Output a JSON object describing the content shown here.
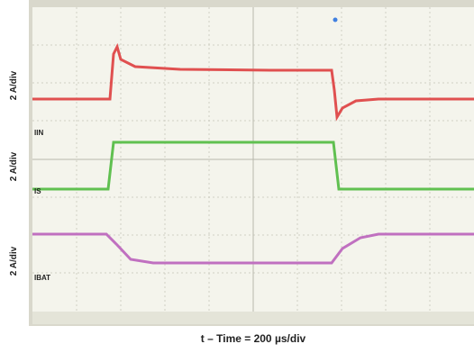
{
  "channels": [
    {
      "scale": "2 A/div",
      "label": "IIN"
    },
    {
      "scale": "2 A/div",
      "label": "IS"
    },
    {
      "scale": "2 A/div",
      "label": "IBAT"
    }
  ],
  "time_label": "t – Time = 200 µs/div"
}
